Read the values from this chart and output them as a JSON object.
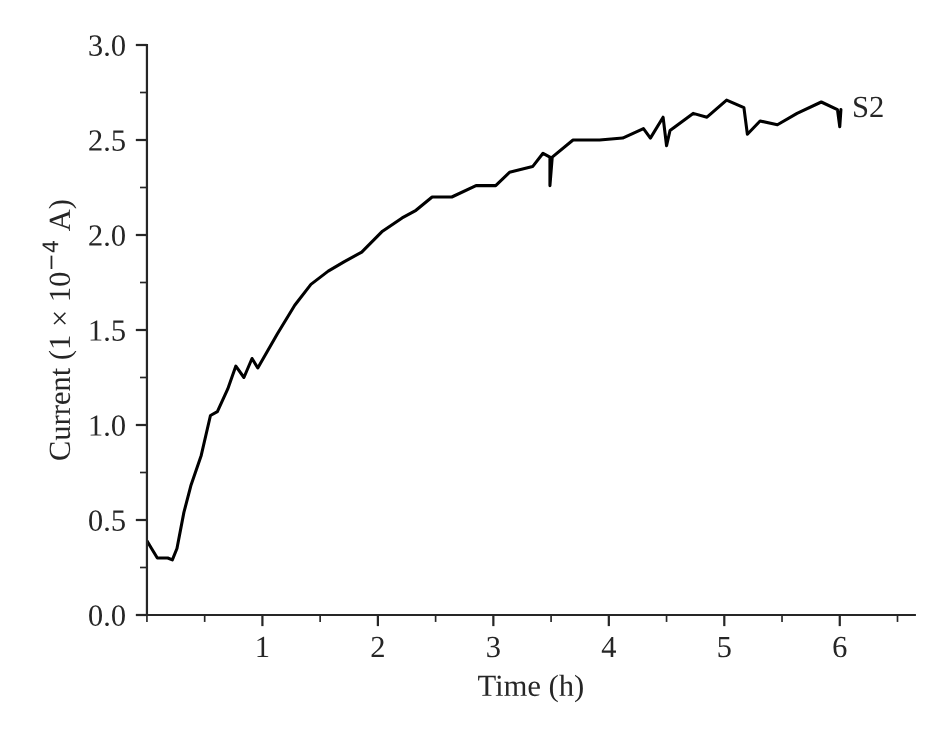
{
  "chart_data": {
    "type": "line",
    "xlabel": "Time (h)",
    "ylabel": "Current (1 × 10$^{−4}$ A)",
    "xlim": [
      0,
      6.65
    ],
    "ylim": [
      0,
      3.0
    ],
    "xticks": [
      1,
      2,
      3,
      4,
      5,
      6
    ],
    "yticks": [
      {
        "value": 0,
        "label": "0.0"
      },
      0.5,
      {
        "value": 1,
        "label": "1.0"
      },
      1.5,
      {
        "value": 2,
        "label": "2.0"
      },
      2.5,
      {
        "value": 3,
        "label": "3.0"
      }
    ],
    "grid": false,
    "marker": "none",
    "line_style": "solid",
    "annotations": [
      {
        "text": "S2",
        "x": 6.01,
        "y": 2.66
      }
    ],
    "series": [
      {
        "color": "#000000",
        "x": [
          0,
          0.04,
          0.09,
          0.18,
          0.22,
          0.26,
          0.32,
          0.38,
          0.47,
          0.55,
          0.61,
          0.7,
          0.77,
          0.84,
          0.91,
          0.96,
          1.13,
          1.28,
          1.42,
          1.57,
          1.71,
          1.86,
          2.04,
          2.21,
          2.33,
          2.47,
          2.64,
          2.85,
          3.02,
          3.14,
          3.34,
          3.43,
          3.49,
          3.49,
          3.51,
          3.69,
          3.92,
          4.12,
          4.3,
          4.36,
          4.47,
          4.5,
          4.53,
          4.73,
          4.85,
          5.02,
          5.17,
          5.2,
          5.31,
          5.46,
          5.63,
          5.84,
          5.98,
          6.0,
          6.01
        ],
        "values": [
          0.39,
          0.35,
          0.3,
          0.3,
          0.29,
          0.35,
          0.54,
          0.68,
          0.84,
          1.05,
          1.07,
          1.19,
          1.31,
          1.25,
          1.35,
          1.3,
          1.48,
          1.63,
          1.74,
          1.81,
          1.86,
          1.91,
          2.02,
          2.09,
          2.13,
          2.2,
          2.2,
          2.26,
          2.26,
          2.33,
          2.36,
          2.43,
          2.41,
          2.26,
          2.41,
          2.5,
          2.5,
          2.51,
          2.56,
          2.51,
          2.62,
          2.47,
          2.55,
          2.64,
          2.62,
          2.71,
          2.67,
          2.53,
          2.6,
          2.58,
          2.64,
          2.7,
          2.66,
          2.57,
          2.66
        ]
      }
    ]
  }
}
